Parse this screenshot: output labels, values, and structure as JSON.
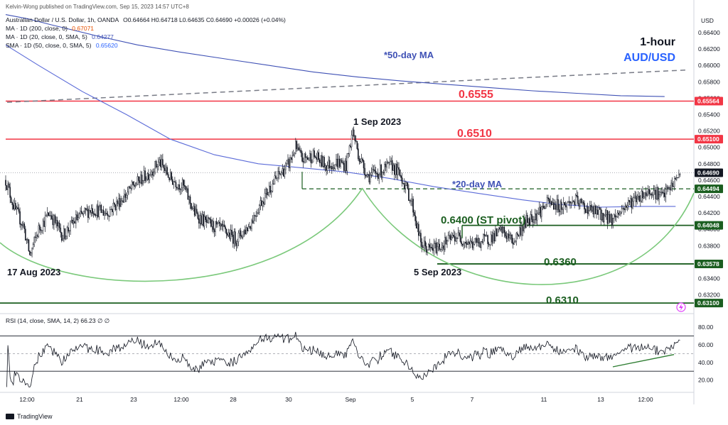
{
  "header": {
    "published": "Kelvin-Wong published on TradingView.com, Sep 15, 2023 14:57 UTC+8",
    "symbol": "Australian Dollar / U.S. Dollar, 1h, OANDA",
    "ohlc": "O0.64664 H0.64718 L0.64635 C0.64690 +0.00026 (+0.04%)",
    "ind1_label": "MA · 1D (200, close, 0)",
    "ind1_value": "0.67071",
    "ind2_label": "MA · 1D (20, close, 0, SMA, 5)",
    "ind2_value": "0.64277",
    "ind3_label": "SMA · 1D (50, close, 0, SMA, 5)",
    "ind3_value": "0.65620"
  },
  "title": {
    "timeframe": "1-hour",
    "pair": "AUD/USD"
  },
  "currency": "USD",
  "annotations": {
    "ma50": "*50-day MA",
    "ma20": "*20-day MA",
    "r6555": "0.6555",
    "r6510": "0.6510",
    "pivot": "0.6400 (ST pivot)",
    "s6360": "0.6360",
    "s6310": "0.6310",
    "high_date": "1 Sep 2023",
    "low_date_left": "17 Aug 2023",
    "low_date_mid": "5 Sep 2023"
  },
  "rsi_header": "RSI (14, close, SMA, 14, 2)  66.23  ∅  ∅",
  "footer": {
    "brand": "TradingView"
  },
  "colors": {
    "bull": "#131722",
    "bear": "#131722",
    "resistance": "#f23645",
    "support": "#1b5e20",
    "ma50": "#3f51b5",
    "ma20": "#5b6bd8",
    "arc": "#7bc97b",
    "dashed": "#787b86"
  },
  "chart_data": {
    "type": "candlestick",
    "price_axis": {
      "ylim": [
        0.63,
        0.665
      ],
      "ticks": [
        "0.66400",
        "0.66200",
        "0.66000",
        "0.65800",
        "0.65600",
        "0.65400",
        "0.65200",
        "0.65000",
        "0.64800",
        "0.64600",
        "0.64400",
        "0.64200",
        "0.64000",
        "0.63800",
        "0.63600",
        "0.63400",
        "0.63200"
      ]
    },
    "x_axis": {
      "ticks": [
        "12:00",
        "21",
        "23",
        "12:00",
        "28",
        "30",
        "Sep",
        "5",
        "7",
        "11",
        "13",
        "12:00"
      ]
    },
    "price_labels": [
      {
        "value": "0.65564",
        "color": "#f23645",
        "kind": "line"
      },
      {
        "value": "0.65100",
        "color": "#f23645",
        "kind": "line"
      },
      {
        "value": "0.64690",
        "color": "#131722",
        "kind": "last"
      },
      {
        "value": "0.64494",
        "color": "#1b5e20",
        "kind": "line"
      },
      {
        "value": "0.64048",
        "color": "#1b5e20",
        "kind": "line"
      },
      {
        "value": "0.63578",
        "color": "#1b5e20",
        "kind": "line"
      },
      {
        "value": "0.63100",
        "color": "#1b5e20",
        "kind": "line"
      }
    ],
    "levels": {
      "resistance": [
        0.65564,
        0.651
      ],
      "support_dashed": 0.64494,
      "pivot": 0.64048,
      "support": [
        0.63578,
        0.631
      ]
    },
    "close_anchors": [
      [
        0,
        0.646
      ],
      [
        8,
        0.6425
      ],
      [
        16,
        0.6405
      ],
      [
        22,
        0.6368
      ],
      [
        30,
        0.64
      ],
      [
        40,
        0.642
      ],
      [
        52,
        0.6392
      ],
      [
        64,
        0.6412
      ],
      [
        78,
        0.6425
      ],
      [
        92,
        0.642
      ],
      [
        108,
        0.644
      ],
      [
        118,
        0.6455
      ],
      [
        130,
        0.6468
      ],
      [
        140,
        0.6482
      ],
      [
        150,
        0.6462
      ],
      [
        162,
        0.6452
      ],
      [
        172,
        0.642
      ],
      [
        182,
        0.6408
      ],
      [
        196,
        0.64
      ],
      [
        210,
        0.6388
      ],
      [
        222,
        0.6405
      ],
      [
        232,
        0.6432
      ],
      [
        240,
        0.645
      ],
      [
        250,
        0.6468
      ],
      [
        258,
        0.648
      ],
      [
        264,
        0.65
      ],
      [
        270,
        0.6485
      ],
      [
        280,
        0.649
      ],
      [
        292,
        0.6478
      ],
      [
        302,
        0.6482
      ],
      [
        310,
        0.6478
      ],
      [
        316,
        0.652
      ],
      [
        322,
        0.6488
      ],
      [
        330,
        0.6465
      ],
      [
        340,
        0.647
      ],
      [
        352,
        0.6478
      ],
      [
        362,
        0.646
      ],
      [
        370,
        0.6432
      ],
      [
        378,
        0.6382
      ],
      [
        386,
        0.6375
      ],
      [
        396,
        0.638
      ],
      [
        410,
        0.6392
      ],
      [
        424,
        0.6382
      ],
      [
        440,
        0.6388
      ],
      [
        452,
        0.6398
      ],
      [
        462,
        0.6385
      ],
      [
        474,
        0.641
      ],
      [
        484,
        0.642
      ],
      [
        494,
        0.6432
      ],
      [
        506,
        0.6428
      ],
      [
        518,
        0.6435
      ],
      [
        530,
        0.6425
      ],
      [
        542,
        0.6418
      ],
      [
        552,
        0.6412
      ],
      [
        564,
        0.6428
      ],
      [
        576,
        0.644
      ],
      [
        588,
        0.6448
      ],
      [
        598,
        0.644
      ],
      [
        606,
        0.6452
      ],
      [
        614,
        0.6469
      ]
    ],
    "ma50_line": [
      [
        0,
        0.6662
      ],
      [
        20,
        0.6657
      ],
      [
        40,
        0.665
      ],
      [
        80,
        0.6637
      ],
      [
        120,
        0.6625
      ],
      [
        160,
        0.6616
      ],
      [
        200,
        0.6608
      ],
      [
        240,
        0.66
      ],
      [
        280,
        0.6592
      ],
      [
        320,
        0.6586
      ],
      [
        360,
        0.6581
      ],
      [
        400,
        0.6577
      ],
      [
        440,
        0.6573
      ],
      [
        480,
        0.6569
      ],
      [
        520,
        0.6566
      ],
      [
        560,
        0.6563
      ],
      [
        600,
        0.6562
      ]
    ],
    "ma20_line": [
      [
        0,
        0.6625
      ],
      [
        30,
        0.66
      ],
      [
        70,
        0.6568
      ],
      [
        110,
        0.654
      ],
      [
        150,
        0.651
      ],
      [
        190,
        0.6491
      ],
      [
        230,
        0.648
      ],
      [
        270,
        0.6475
      ],
      [
        310,
        0.647
      ],
      [
        350,
        0.6462
      ],
      [
        390,
        0.6452
      ],
      [
        430,
        0.6444
      ],
      [
        470,
        0.6436
      ],
      [
        500,
        0.6431
      ],
      [
        540,
        0.6427
      ],
      [
        580,
        0.6428
      ],
      [
        610,
        0.6428
      ]
    ],
    "rsi": {
      "ylim": [
        10,
        85
      ],
      "levels": [
        70,
        50,
        30
      ],
      "ticks": [
        "80.00",
        "60.00",
        "40.00",
        "20.00"
      ]
    }
  }
}
